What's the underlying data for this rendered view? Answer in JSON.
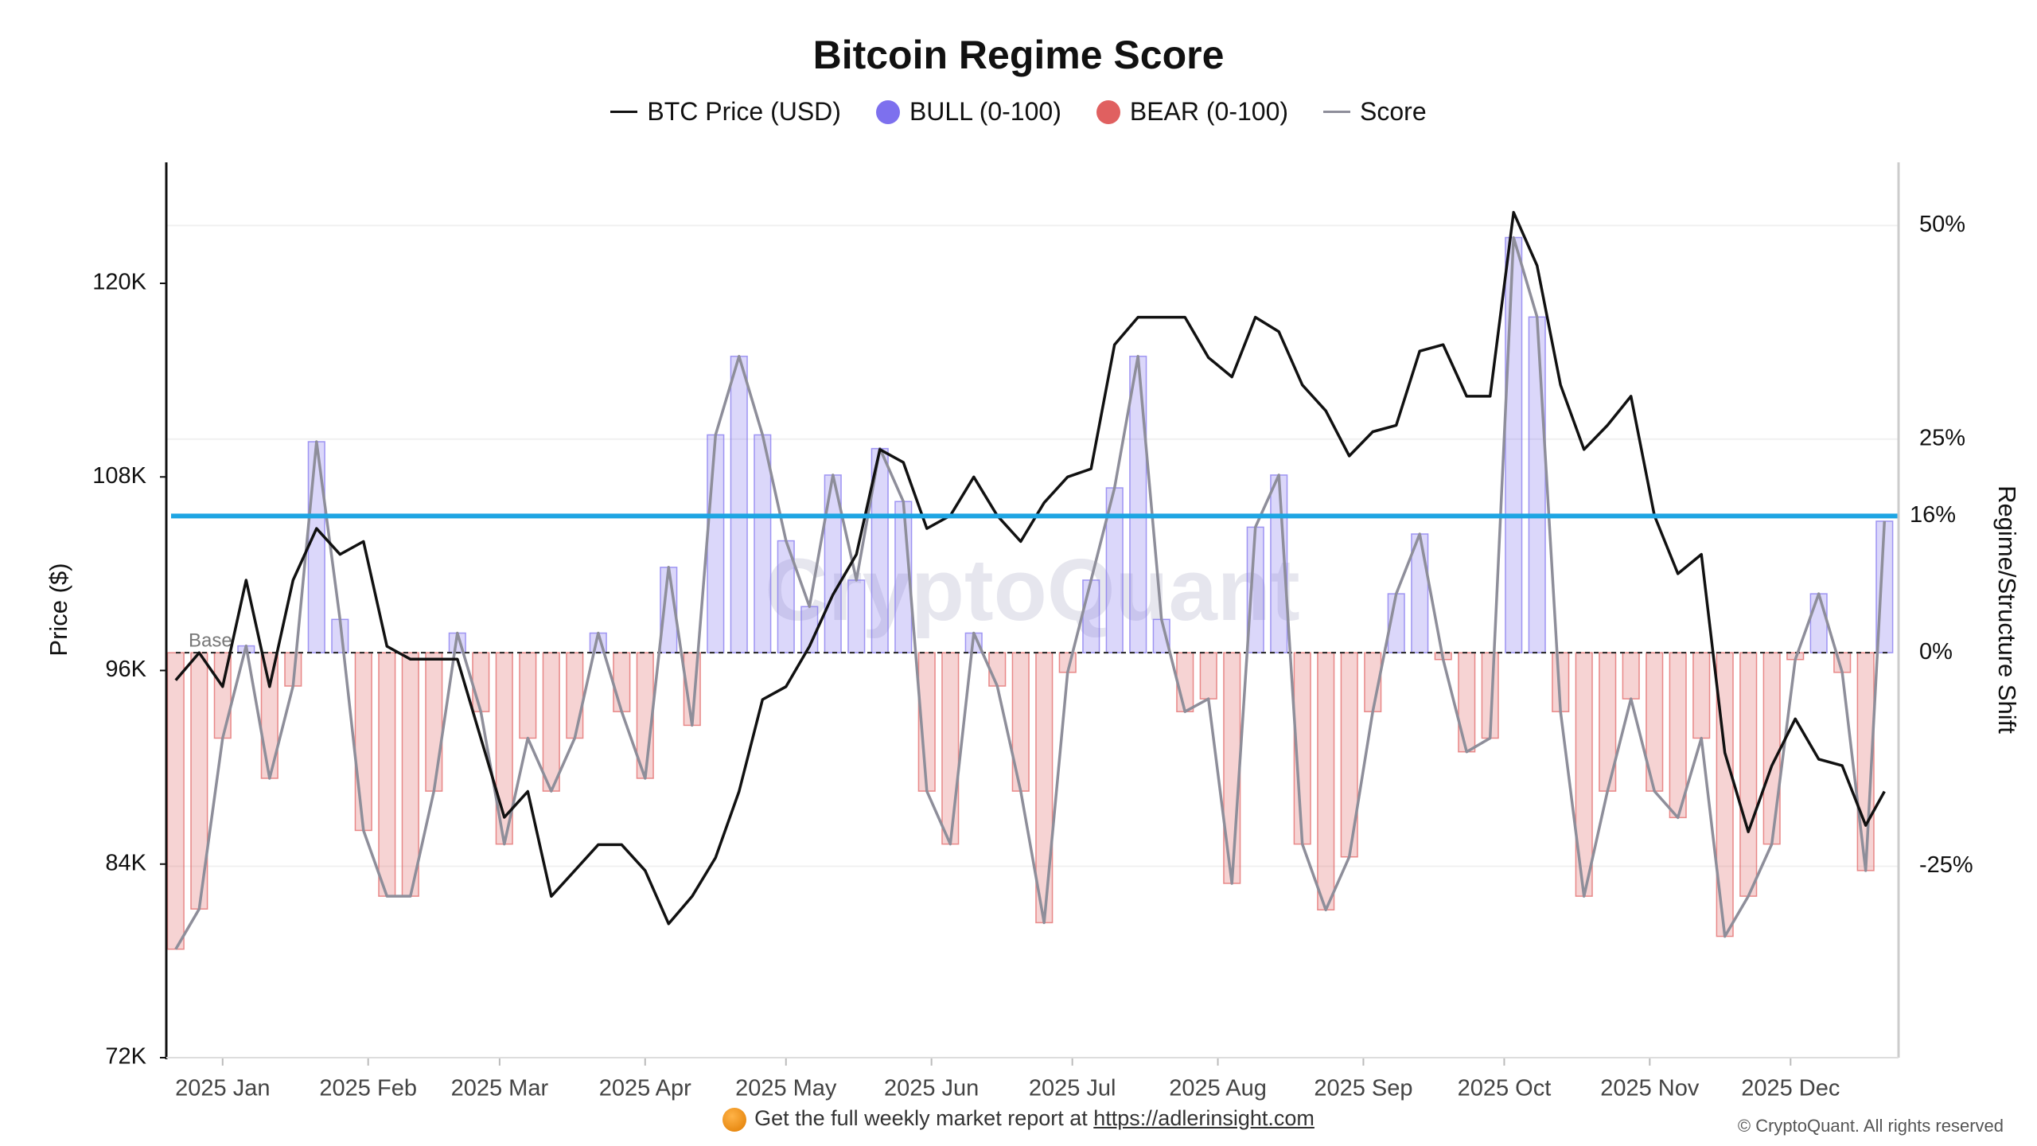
{
  "chart_data": {
    "type": "regime",
    "title": "Bitcoin Regime Score",
    "x": [
      -10,
      -5,
      0,
      5,
      10,
      15,
      20,
      25,
      30,
      35,
      40,
      45,
      50,
      55,
      60,
      65,
      70,
      75,
      80,
      85,
      90,
      95,
      100,
      105,
      110,
      115,
      120,
      125,
      130,
      135,
      140,
      145,
      150,
      155,
      160,
      165,
      170,
      175,
      180,
      185,
      190,
      195,
      200,
      205,
      210,
      215,
      220,
      225,
      230,
      235,
      240,
      245,
      250,
      255,
      260,
      265,
      270,
      275,
      280,
      285,
      290,
      295,
      300,
      305,
      310,
      315,
      320,
      325,
      330,
      335,
      340,
      345,
      350,
      354
    ],
    "series": [
      {
        "name": "BTC Price (USD)",
        "color": "#111111",
        "axis": "y",
        "values": [
          95400,
          97100,
          95000,
          101600,
          95000,
          101600,
          104800,
          103200,
          104000,
          97500,
          96700,
          96700,
          96700,
          91800,
          86900,
          88500,
          82000,
          83600,
          85200,
          85200,
          83600,
          80300,
          82000,
          84400,
          88500,
          94200,
          95000,
          97500,
          100700,
          103200,
          109700,
          108900,
          104800,
          105600,
          108000,
          105600,
          104000,
          106400,
          108000,
          108500,
          116200,
          117900,
          117900,
          117900,
          115400,
          114200,
          117900,
          117000,
          113700,
          112100,
          109300,
          110800,
          111200,
          115800,
          116200,
          113000,
          113000,
          124400,
          121100,
          113700,
          109700,
          111200,
          113000,
          105600,
          102000,
          103200,
          90900,
          86000,
          90100,
          93000,
          90500,
          90100,
          86400,
          88500
        ]
      },
      {
        "name": "Score",
        "color": "#8e8e9a",
        "axis": "y2",
        "values": [
          -34.7,
          -30,
          -10,
          0.8,
          -14.7,
          -3.9,
          24.7,
          3.9,
          -20.8,
          -28.5,
          -28.5,
          -16.2,
          2.3,
          -6.9,
          -22.4,
          -10,
          -16.2,
          -10,
          2.3,
          -6.9,
          -14.7,
          10,
          -8.5,
          25.5,
          34.7,
          25.5,
          13.1,
          5.4,
          20.8,
          8.5,
          23.9,
          17.7,
          -16.2,
          -22.4,
          2.3,
          -3.9,
          -16.2,
          -31.6,
          -2.3,
          8.5,
          19.3,
          34.7,
          3.9,
          -6.9,
          -5.4,
          -27,
          14.7,
          20.8,
          -22.4,
          -30.1,
          -23.9,
          -6.9,
          6.9,
          13.9,
          -0.8,
          -11.6,
          -10,
          48.6,
          39.3,
          -6.9,
          -28.5,
          -16.2,
          -5.4,
          -16.2,
          -19.3,
          -10,
          -33.2,
          -28.5,
          -22.4,
          -0.8,
          6.9,
          -2.3,
          -25.5,
          15.4
        ]
      }
    ],
    "bull": {
      "name": "BULL (0-100)",
      "color": "#7d70ee"
    },
    "bear": {
      "name": "BEAR (0-100)",
      "color": "#e06060"
    },
    "xlim": [
      -12,
      357
    ],
    "xticks": [
      {
        "value": 0,
        "label": "2025 Jan"
      },
      {
        "value": 31,
        "label": "2025 Feb"
      },
      {
        "value": 59,
        "label": "2025 Mar"
      },
      {
        "value": 90,
        "label": "2025 Apr"
      },
      {
        "value": 120,
        "label": "2025 May"
      },
      {
        "value": 151,
        "label": "2025 Jun"
      },
      {
        "value": 181,
        "label": "2025 Jul"
      },
      {
        "value": 212,
        "label": "2025 Aug"
      },
      {
        "value": 243,
        "label": "2025 Sep"
      },
      {
        "value": 273,
        "label": "2025 Oct"
      },
      {
        "value": 304,
        "label": "2025 Nov"
      },
      {
        "value": 334,
        "label": "2025 Dec"
      }
    ],
    "ylim": [
      72000,
      127500
    ],
    "yticks": [
      {
        "value": 72000,
        "label": "72K"
      },
      {
        "value": 84000,
        "label": "84K"
      },
      {
        "value": 96000,
        "label": "96K"
      },
      {
        "value": 108000,
        "label": "108K"
      },
      {
        "value": 120000,
        "label": "120K"
      }
    ],
    "y2lim": [
      -47.4,
      57.4
    ],
    "y2ticks": [
      {
        "value": -25,
        "label": "-25%"
      },
      {
        "value": 0,
        "label": "0%"
      },
      {
        "value": 25,
        "label": "25%"
      },
      {
        "value": 50,
        "label": "50%"
      }
    ],
    "ylabel": "Price ($)",
    "y2label": "Regime/Structure Shift",
    "threshold": {
      "value": 16,
      "label": "16%",
      "color": "#1ea5e3"
    },
    "baseline_label": "Base",
    "watermark": "CryptoQuant",
    "grid": true
  },
  "footer": {
    "text": "Get the full weekly market report at",
    "link": "https://adlerinsight.com",
    "copyright": "© CryptoQuant. All rights reserved"
  }
}
